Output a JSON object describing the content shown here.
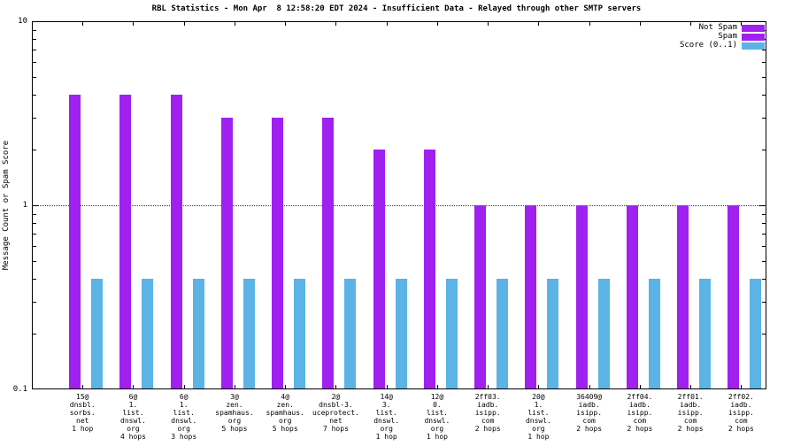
{
  "chart_data": {
    "type": "bar",
    "scale": "log-y",
    "title": "RBL Statistics - Mon Apr  8 12:58:20 EDT 2024 - Insufficient Data - Relayed through other SMTP servers",
    "ylabel": "Message Count or Spam Score",
    "ylim": [
      0.1,
      10
    ],
    "yticks": [
      {
        "label": "10",
        "value": 10
      },
      {
        "label": "1",
        "value": 1
      },
      {
        "label": "0.1",
        "value": 0.1
      }
    ],
    "grid_values": [
      1
    ],
    "categories": [
      [
        "15@",
        "dnsbl.",
        "sorbs.",
        "net",
        "1 hop"
      ],
      [
        "6@",
        "1.",
        "list.",
        "dnswl.",
        "org",
        "4 hops"
      ],
      [
        "6@",
        "1.",
        "list.",
        "dnswl.",
        "org",
        "3 hops"
      ],
      [
        "3@",
        "zen.",
        "spamhaus.",
        "org",
        "5 hops"
      ],
      [
        "4@",
        "zen.",
        "spamhaus.",
        "org",
        "5 hops"
      ],
      [
        "2@",
        "dnsbl-3.",
        "uceprotect.",
        "net",
        "7 hops"
      ],
      [
        "14@",
        "3.",
        "list.",
        "dnswl.",
        "org",
        "1 hop"
      ],
      [
        "12@",
        "0.",
        "list.",
        "dnswl.",
        "org",
        "1 hop"
      ],
      [
        "2ff03.",
        "iadb.",
        "isipp.",
        "com",
        "2 hops"
      ],
      [
        "20@",
        "1.",
        "list.",
        "dnswl.",
        "org",
        "1 hop"
      ],
      [
        "36409@",
        "iadb.",
        "isipp.",
        "com",
        "2 hops"
      ],
      [
        "2ff04.",
        "iadb.",
        "isipp.",
        "com",
        "2 hops"
      ],
      [
        "2ff01.",
        "iadb.",
        "isipp.",
        "com",
        "2 hops"
      ],
      [
        "2ff02.",
        "iadb.",
        "isipp.",
        "com",
        "2 hops"
      ]
    ],
    "series": [
      {
        "name": "Not Spam",
        "color": "#a020f0",
        "values": [
          4,
          4,
          4,
          3,
          3,
          3,
          2,
          2,
          1,
          1,
          1,
          1,
          1,
          1
        ]
      },
      {
        "name": "Score (0..1)",
        "color": "#5cb3e6",
        "values": [
          0.4,
          0.4,
          0.4,
          0.4,
          0.4,
          0.4,
          0.4,
          0.4,
          0.4,
          0.4,
          0.4,
          0.4,
          0.4,
          0.4
        ]
      }
    ],
    "legend": [
      {
        "label": "Not Spam",
        "color": "#a020f0"
      },
      {
        "label": "Spam",
        "color": "#a020f0"
      },
      {
        "label": "Score (0..1)",
        "color": "#5cb3e6"
      }
    ],
    "legend_position": "top-right",
    "grid": "dotted line at y=1 only"
  }
}
